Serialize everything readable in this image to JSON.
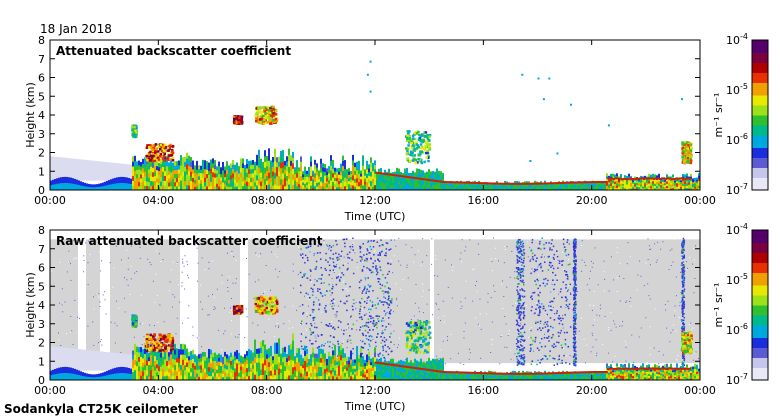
{
  "date": "18 Jan 2018",
  "footer": "Sodankyla CT25K ceilometer",
  "colorbar_unit": "m⁻¹ sr⁻¹",
  "colorscale": [
    "#e8e8f6",
    "#c6c6ec",
    "#5b5bd3",
    "#1a2ee0",
    "#00a8e0",
    "#00b88a",
    "#2fc02f",
    "#9be21a",
    "#e8e800",
    "#f0a000",
    "#e83000",
    "#b00000",
    "#7a0040",
    "#55006a"
  ],
  "chart_data": [
    {
      "type": "heatmap",
      "title": "Attenuated backscatter coefficient",
      "xlabel": "Time (UTC)",
      "ylabel": "Height (km)",
      "xticks": [
        "00:00",
        "04:00",
        "08:00",
        "12:00",
        "16:00",
        "20:00",
        "00:00"
      ],
      "yticks": [
        "0",
        "1",
        "2",
        "3",
        "4",
        "5",
        "6",
        "7",
        "8"
      ],
      "xlim": [
        0,
        24
      ],
      "ylim": [
        0,
        8
      ],
      "colorbar": {
        "scale": "log",
        "range": [
          1e-07,
          0.0001
        ],
        "ticks": [
          {
            "mant": "10",
            "exp": "-7"
          },
          {
            "mant": "10",
            "exp": "-6"
          },
          {
            "mant": "10",
            "exp": "-5"
          },
          {
            "mant": "10",
            "exp": "-4"
          }
        ]
      }
    },
    {
      "type": "heatmap",
      "title": "Raw attenuated backscatter coefficient",
      "xlabel": "Time (UTC)",
      "ylabel": "Height (km)",
      "xticks": [
        "00:00",
        "04:00",
        "08:00",
        "12:00",
        "16:00",
        "20:00",
        "00:00"
      ],
      "yticks": [
        "0",
        "1",
        "2",
        "3",
        "4",
        "5",
        "6",
        "7",
        "8"
      ],
      "xlim": [
        0,
        24
      ],
      "ylim": [
        0,
        8
      ],
      "colorbar": {
        "scale": "log",
        "range": [
          1e-07,
          0.0001
        ],
        "ticks": [
          {
            "mant": "10",
            "exp": "-7"
          },
          {
            "mant": "10",
            "exp": "-6"
          },
          {
            "mant": "10",
            "exp": "-5"
          },
          {
            "mant": "10",
            "exp": "-4"
          }
        ]
      }
    }
  ]
}
